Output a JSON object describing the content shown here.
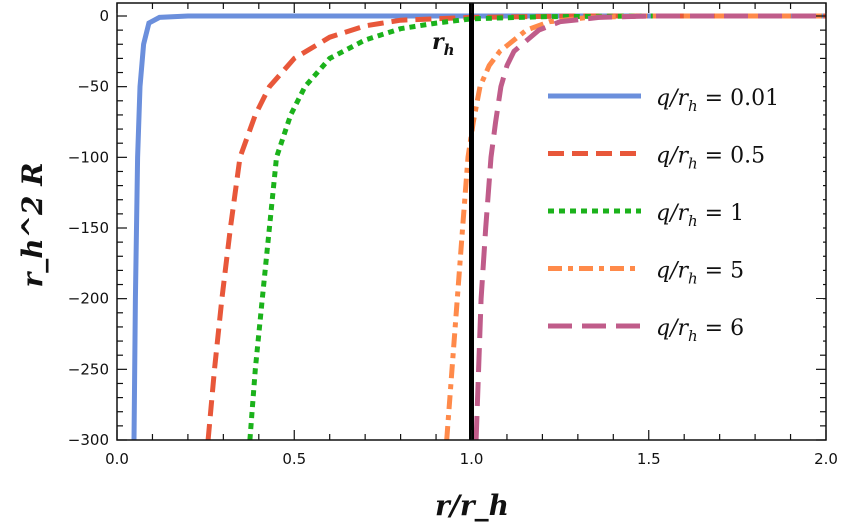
{
  "chart_data": {
    "type": "line",
    "xlabel": "r/r_h",
    "ylabel": "r_h^2 R",
    "xlim": [
      0,
      2.0
    ],
    "ylim": [
      -300,
      9
    ],
    "xticks": [
      "0.0",
      "0.5",
      "1.0",
      "1.5",
      "2.0"
    ],
    "xtick_values": [
      0,
      0.5,
      1.0,
      1.5,
      2.0
    ],
    "yticks": [
      "0",
      "−50",
      "−100",
      "−150",
      "−200",
      "−250",
      "−300"
    ],
    "ytick_values": [
      0,
      -50,
      -100,
      -150,
      -200,
      -250,
      -300
    ],
    "grid": false,
    "legend_position": "right",
    "vertical_line": {
      "x": 1.0,
      "label": "r_h",
      "color": "#000000"
    },
    "series": [
      {
        "name": "q/r_h = 0.01",
        "color": "#6b8fdc",
        "dash": "solid",
        "points": [
          [
            0.048,
            -300
          ],
          [
            0.052,
            -200
          ],
          [
            0.058,
            -100
          ],
          [
            0.065,
            -50
          ],
          [
            0.075,
            -20
          ],
          [
            0.09,
            -5
          ],
          [
            0.12,
            -1
          ],
          [
            0.2,
            0
          ],
          [
            2.0,
            0
          ]
        ]
      },
      {
        "name": "q/r_h = 0.5",
        "color": "#e8573a",
        "dash": "dashed",
        "points": [
          [
            0.257,
            -300
          ],
          [
            0.275,
            -250
          ],
          [
            0.296,
            -200
          ],
          [
            0.32,
            -150
          ],
          [
            0.347,
            -100
          ],
          [
            0.39,
            -70
          ],
          [
            0.43,
            -50
          ],
          [
            0.5,
            -30
          ],
          [
            0.6,
            -15
          ],
          [
            0.7,
            -7
          ],
          [
            0.8,
            -3
          ],
          [
            1.0,
            -1
          ],
          [
            1.3,
            0
          ],
          [
            2.0,
            0
          ]
        ]
      },
      {
        "name": "q/r_h = 1",
        "color": "#1bb21b",
        "dash": "dotted",
        "points": [
          [
            0.375,
            -300
          ],
          [
            0.39,
            -250
          ],
          [
            0.41,
            -200
          ],
          [
            0.43,
            -150
          ],
          [
            0.45,
            -100
          ],
          [
            0.49,
            -70
          ],
          [
            0.53,
            -50
          ],
          [
            0.6,
            -30
          ],
          [
            0.7,
            -17
          ],
          [
            0.8,
            -9
          ],
          [
            0.9,
            -5
          ],
          [
            1.0,
            -2
          ],
          [
            1.2,
            -0.5
          ],
          [
            1.5,
            0
          ],
          [
            2.0,
            0
          ]
        ]
      },
      {
        "name": "q/r_h = 5",
        "color": "#ff8a4a",
        "dash": "dashdot",
        "points": [
          [
            0.93,
            -300
          ],
          [
            0.945,
            -250
          ],
          [
            0.96,
            -200
          ],
          [
            0.975,
            -150
          ],
          [
            0.99,
            -100
          ],
          [
            1.005,
            -75
          ],
          [
            1.024,
            -50
          ],
          [
            1.05,
            -35
          ],
          [
            1.08,
            -25
          ],
          [
            1.155,
            -10
          ],
          [
            1.22,
            -4
          ],
          [
            1.33,
            -1
          ],
          [
            1.5,
            0
          ],
          [
            2.0,
            0
          ]
        ]
      },
      {
        "name": "q/r_h = 6",
        "color": "#c05c8a",
        "dash": "longdash",
        "points": [
          [
            1.013,
            -300
          ],
          [
            1.02,
            -250
          ],
          [
            1.027,
            -200
          ],
          [
            1.04,
            -150
          ],
          [
            1.055,
            -100
          ],
          [
            1.068,
            -75
          ],
          [
            1.083,
            -50
          ],
          [
            1.1,
            -35
          ],
          [
            1.12,
            -25
          ],
          [
            1.19,
            -10
          ],
          [
            1.25,
            -4
          ],
          [
            1.36,
            -1
          ],
          [
            1.5,
            0
          ],
          [
            2.0,
            0
          ]
        ]
      }
    ]
  }
}
